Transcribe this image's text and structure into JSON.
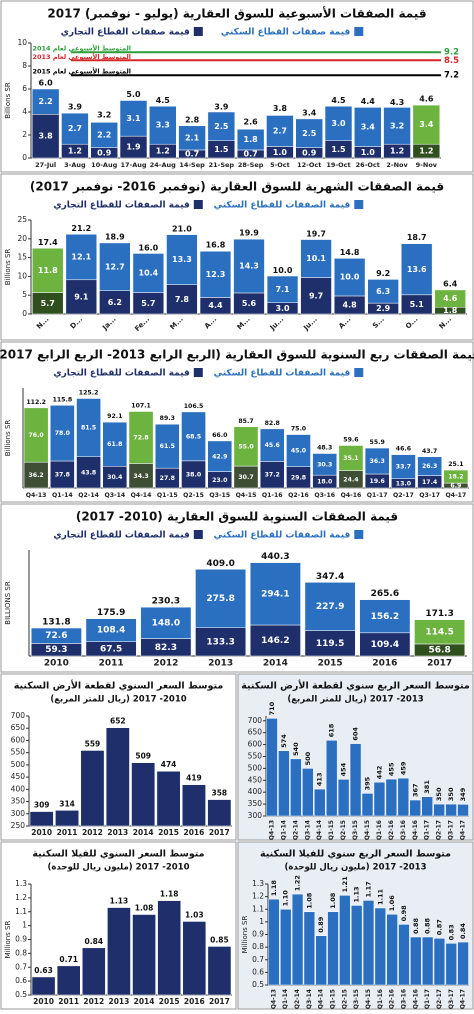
{
  "chart_data": [
    {
      "type": "stacked_bar",
      "title": "قيمة الصفقات الأسبوعية للسوق العقارية (يوليو - نوفمبر) 2017",
      "y_label": "Billions SR",
      "categories": [
        "27-Jul",
        "3-Aug",
        "10-Aug",
        "17-Aug",
        "24-Aug",
        "14-Sep",
        "21-Sep",
        "28-Sep",
        "5-Oct",
        "12-Oct",
        "19-Oct",
        "26-Oct",
        "2-Nov",
        "9-Nov"
      ],
      "series": [
        {
          "name": "قيمة صفقات القطاع التجاري",
          "color": "#1f2f6b",
          "highlight_color": "#2f4f1f",
          "values": [
            3.8,
            1.2,
            0.9,
            1.9,
            1.2,
            0.7,
            1.5,
            0.7,
            1.0,
            0.9,
            1.5,
            1.0,
            1.2,
            1.2
          ],
          "value_labels": [
            "3.8",
            "1.2",
            "0.9",
            "1.9",
            "1.2",
            "0.7",
            "1.5",
            "0.7",
            "1.0",
            "0.9",
            "1.5",
            "1.0",
            "1.2",
            "1.2"
          ]
        },
        {
          "name": "قيمة صفقات القطاع السكني",
          "color": "#2a6fc0",
          "highlight_color": "#6db33f",
          "values": [
            2.2,
            2.7,
            2.2,
            3.1,
            3.3,
            2.1,
            2.5,
            1.8,
            2.7,
            2.5,
            3.0,
            3.4,
            3.2,
            3.4
          ],
          "value_labels": [
            "2.2",
            "2.7",
            "2.2",
            "3.1",
            "3.3",
            "2.1",
            "2.5",
            "1.8",
            "2.7",
            "2.5",
            "3.0",
            "3.4",
            "3.2",
            "3.4"
          ]
        }
      ],
      "totals": [
        6.0,
        3.9,
        3.2,
        5.0,
        4.5,
        2.8,
        3.9,
        2.6,
        3.8,
        3.4,
        4.5,
        4.4,
        4.3,
        4.6
      ],
      "total_labels": [
        "6.0",
        "3.9",
        "3.2",
        "5.0",
        "4.5",
        "2.8",
        "3.9",
        "2.6",
        "3.8",
        "3.4",
        "4.5",
        "4.4",
        "4.3",
        "4.6"
      ],
      "highlight_categories": [
        "9-Nov"
      ],
      "reference_lines": [
        {
          "name": "المتوسط الأسبوعي لعام 2014",
          "value": 9.2,
          "color": "#2e9e3a"
        },
        {
          "name": "المتوسط الأسبوعي لعام 2013",
          "value": 8.5,
          "color": "#d62728"
        },
        {
          "name": "المتوسط الأسبوعي لعام 2015",
          "value": 7.2,
          "color": "#000000"
        }
      ],
      "ylim": [
        0,
        10
      ],
      "yticks": [
        0,
        2,
        4,
        6,
        8,
        10
      ]
    },
    {
      "type": "stacked_bar",
      "title": "قيمة الصفقات الشهرية للسوق العقارية (نوفمبر 2016- نوفمبر 2017)",
      "y_label": "Billions SR",
      "categories": [
        "N...",
        "D...",
        "Ja...",
        "Fe...",
        "M...",
        "A...",
        "M...",
        "Ju...",
        "Ju...",
        "A...",
        "S...",
        "O...",
        "N..."
      ],
      "series": [
        {
          "name": "قيمة الصفقات للقطاع التجاري",
          "color": "#1f2f6b",
          "highlight_color": "#2f4f1f",
          "values": [
            5.7,
            9.1,
            6.2,
            5.7,
            7.8,
            4.4,
            5.6,
            3.0,
            9.7,
            4.8,
            2.9,
            5.1,
            1.8
          ],
          "value_labels": [
            "5.7",
            "9.1",
            "6.2",
            "5.7",
            "7.8",
            "4.4",
            "5.6",
            "3.0",
            "9.7",
            "4.8",
            "2.9",
            "5.1",
            "1.8"
          ]
        },
        {
          "name": "قيمة الصفقات للقطاع السكني",
          "color": "#2a6fc0",
          "highlight_color": "#6db33f",
          "values": [
            11.8,
            12.1,
            12.7,
            10.4,
            13.3,
            12.3,
            14.3,
            7.1,
            10.1,
            10.0,
            6.3,
            13.6,
            4.6
          ],
          "value_labels": [
            "11.8",
            "12.1",
            "12.7",
            "10.4",
            "13.3",
            "12.3",
            "14.3",
            "7.1",
            "10.1",
            "10.0",
            "6.3",
            "13.6",
            "4.6"
          ]
        }
      ],
      "totals": [
        17.4,
        21.2,
        18.9,
        16.0,
        21.0,
        16.8,
        19.9,
        10.0,
        19.7,
        14.8,
        9.2,
        18.7,
        6.4
      ],
      "total_labels": [
        "17.4",
        "21.2",
        "18.9",
        "16.0",
        "21.0",
        "16.8",
        "19.9",
        "10.0",
        "19.7",
        "14.8",
        "9.2",
        "18.7",
        "6.4"
      ],
      "highlight_categories": [
        "N..."
      ],
      "ylim": [
        0,
        25
      ],
      "yticks": [
        0,
        5,
        10,
        15,
        20,
        25
      ]
    },
    {
      "type": "stacked_bar",
      "title": "قيمة الصفقات ربع السنوية للسوق العقارية (الربع الرابع 2013- الربع الرابع 2017)",
      "y_label": "Billions SR",
      "categories": [
        "Q4-13",
        "Q1-14",
        "Q2-14",
        "Q3-14",
        "Q4-14",
        "Q1-15",
        "Q2-15",
        "Q3-15",
        "Q4-15",
        "Q1-16",
        "Q2-16",
        "Q3-16",
        "Q4-16",
        "Q1-17",
        "Q2-17",
        "Q3-17",
        "Q4-17"
      ],
      "series": [
        {
          "name": "قيمة الصفقات للقطاع التجاري",
          "color": "#1f2f6b",
          "highlight_color": "#3e4f36",
          "values": [
            36.2,
            37.8,
            43.8,
            30.4,
            34.3,
            27.8,
            38.0,
            23.0,
            30.7,
            37.2,
            29.8,
            18.0,
            24.4,
            19.6,
            13.0,
            17.4,
            6.9
          ],
          "value_labels": [
            "36.2",
            "37.8",
            "43.8",
            "30.4",
            "34.3",
            "27.8",
            "38.0",
            "23.0",
            "30.7",
            "37.2",
            "29.8",
            "18.0",
            "24.4",
            "19.6",
            "13.0",
            "17.4",
            "6.9"
          ]
        },
        {
          "name": "قيمة الصفقات للقطاع السكني",
          "color": "#2a6fc0",
          "highlight_color": "#6db33f",
          "values": [
            76.0,
            78.0,
            81.5,
            61.8,
            72.8,
            61.5,
            68.5,
            42.9,
            55.0,
            45.6,
            45.0,
            30.3,
            35.1,
            36.3,
            33.7,
            26.3,
            18.2
          ],
          "value_labels": [
            "76.0",
            "78.0",
            "81.5",
            "61.8",
            "72.8",
            "61.5",
            "68.5",
            "42.9",
            "55.0",
            "45.6",
            "45.0",
            "30.3",
            "35.1",
            "36.3",
            "33.7",
            "26.3",
            "18.2"
          ]
        }
      ],
      "totals": [
        112.2,
        115.8,
        125.2,
        92.1,
        107.1,
        89.3,
        106.5,
        66.0,
        85.7,
        82.8,
        75.0,
        48.3,
        59.6,
        55.9,
        46.6,
        43.7,
        25.1
      ],
      "total_labels": [
        "112.2",
        "115.8",
        "125.2",
        "92.1",
        "107.1",
        "89.3",
        "106.5",
        "66.0",
        "85.7",
        "82.8",
        "75.0",
        "48.3",
        "59.6",
        "55.9",
        "46.6",
        "43.7",
        "25.1"
      ],
      "highlight_categories": [
        "Q4-13",
        "Q4-14",
        "Q4-15",
        "Q4-16",
        "Q4-17"
      ],
      "ylim": [
        0,
        140
      ]
    },
    {
      "type": "stacked_bar",
      "title": "قيمة الصفقات السنوية للسوق العقارية (2010- 2017)",
      "y_label": "BILLIONS SR",
      "categories": [
        "2010",
        "2011",
        "2012",
        "2013",
        "2014",
        "2015",
        "2016",
        "2017"
      ],
      "series": [
        {
          "name": "قيمة الصفقات للقطاع التجاري",
          "color": "#1f2f6b",
          "highlight_color": "#2f4f1f",
          "values": [
            59.3,
            67.5,
            82.3,
            133.3,
            146.2,
            119.5,
            109.4,
            56.8
          ],
          "value_labels": [
            "59.3",
            "67.5",
            "82.3",
            "133.3",
            "146.2",
            "119.5",
            "109.4",
            "56.8"
          ]
        },
        {
          "name": "قيمة الصفقات للقطاع السكني",
          "color": "#2a6fc0",
          "highlight_color": "#6db33f",
          "values": [
            72.6,
            108.4,
            148.0,
            275.8,
            294.1,
            227.9,
            156.2,
            114.5
          ],
          "value_labels": [
            "72.6",
            "108.4",
            "148.0",
            "275.8",
            "294.1",
            "227.9",
            "156.2",
            "114.5"
          ]
        }
      ],
      "totals": [
        131.8,
        175.9,
        230.3,
        409.0,
        440.3,
        347.4,
        265.6,
        171.3
      ],
      "total_labels": [
        "131.8",
        "175.9",
        "230.3",
        "409.0",
        "440.3",
        "347.4",
        "265.6",
        "171.3"
      ],
      "highlight_categories": [
        "2017"
      ],
      "ylim": [
        0,
        500
      ]
    },
    {
      "type": "bar",
      "title": "متوسط السعر السنوي لقطعة الأرض السكنية",
      "subtitle": "(ريال للمتر المربع) 2010- 2017",
      "categories": [
        "2010",
        "2011",
        "2012",
        "2013",
        "2014",
        "2015",
        "2016",
        "2017"
      ],
      "values": [
        309,
        314,
        559,
        652,
        509,
        474,
        419,
        358
      ],
      "color": "#1f2f6b",
      "ylim": [
        250,
        700
      ],
      "yticks": [
        250,
        300,
        350,
        400,
        450,
        500,
        550,
        600,
        650,
        700
      ]
    },
    {
      "type": "bar",
      "title": "متوسط السعر الربع سنوي لقطعة الأرض السكنية",
      "subtitle": "(ريال للمتر المربع) 2013- 2017",
      "categories": [
        "Q4-13",
        "Q1-14",
        "Q2-14",
        "Q3-14",
        "Q4-14",
        "Q1-15",
        "Q2-15",
        "Q3-15",
        "Q4-15",
        "Q1-16",
        "Q2-16",
        "Q3-16",
        "Q4-16",
        "Q1-17",
        "Q2-17",
        "Q3-17",
        "Q4-17"
      ],
      "values": [
        710,
        574,
        540,
        500,
        413,
        618,
        454,
        604,
        395,
        442,
        455,
        459,
        367,
        381,
        350,
        350,
        349
      ],
      "color": "#2a6fc0",
      "ylim": [
        300,
        720
      ],
      "yticks": [
        300,
        350,
        400,
        450,
        500,
        550,
        600,
        650,
        700
      ]
    },
    {
      "type": "bar",
      "title": "متوسط السعر السنوي للفيلا السكنية",
      "subtitle": "(مليون ريال للوحدة) 2010- 2017",
      "y_label": "Millions SR",
      "categories": [
        "2010",
        "2011",
        "2012",
        "2013",
        "2014",
        "2015",
        "2016",
        "2017"
      ],
      "values": [
        0.63,
        0.71,
        0.84,
        1.13,
        1.08,
        1.18,
        1.03,
        0.85
      ],
      "value_labels": [
        "0.63",
        "0.71",
        "0.84",
        "1.13",
        "1.08",
        "1.18",
        "1.03",
        "0.85"
      ],
      "color": "#1f2f6b",
      "ylim": [
        0.5,
        1.3
      ],
      "yticks": [
        0.5,
        0.6,
        0.7,
        0.8,
        0.9,
        1,
        1.1,
        1.2,
        1.3
      ]
    },
    {
      "type": "bar",
      "title": "متوسط السعر الربع سنوي للفيلا السكنية",
      "subtitle": "(مليون ريال للوحدة) 2013- 2017",
      "y_label": "Millions SR",
      "categories": [
        "Q4-13",
        "Q1-14",
        "Q2-14",
        "Q3-14",
        "Q4-14",
        "Q1-15",
        "Q2-15",
        "Q3-15",
        "Q4-15",
        "Q1-16",
        "Q2-16",
        "Q3-16",
        "Q4-16",
        "Q1-17",
        "Q2-17",
        "Q3-17",
        "Q4-17"
      ],
      "values": [
        1.18,
        1.1,
        1.22,
        1.08,
        0.89,
        1.08,
        1.21,
        1.13,
        1.17,
        1.11,
        1.06,
        0.98,
        0.88,
        0.88,
        0.87,
        0.83,
        0.84
      ],
      "value_labels": [
        "1.18",
        "1.10",
        "1.22",
        "1.08",
        "0.89",
        "1.08",
        "1.21",
        "1.13",
        "1.17",
        "1.11",
        "1.06",
        "0.98",
        "0.88",
        "0.88",
        "0.87",
        "0.83",
        "0.84"
      ],
      "color": "#2a6fc0",
      "ylim": [
        0.5,
        1.3
      ],
      "yticks": [
        0.5,
        0.6,
        0.7,
        0.8,
        0.9,
        1,
        1.1,
        1.2,
        1.3
      ]
    }
  ]
}
